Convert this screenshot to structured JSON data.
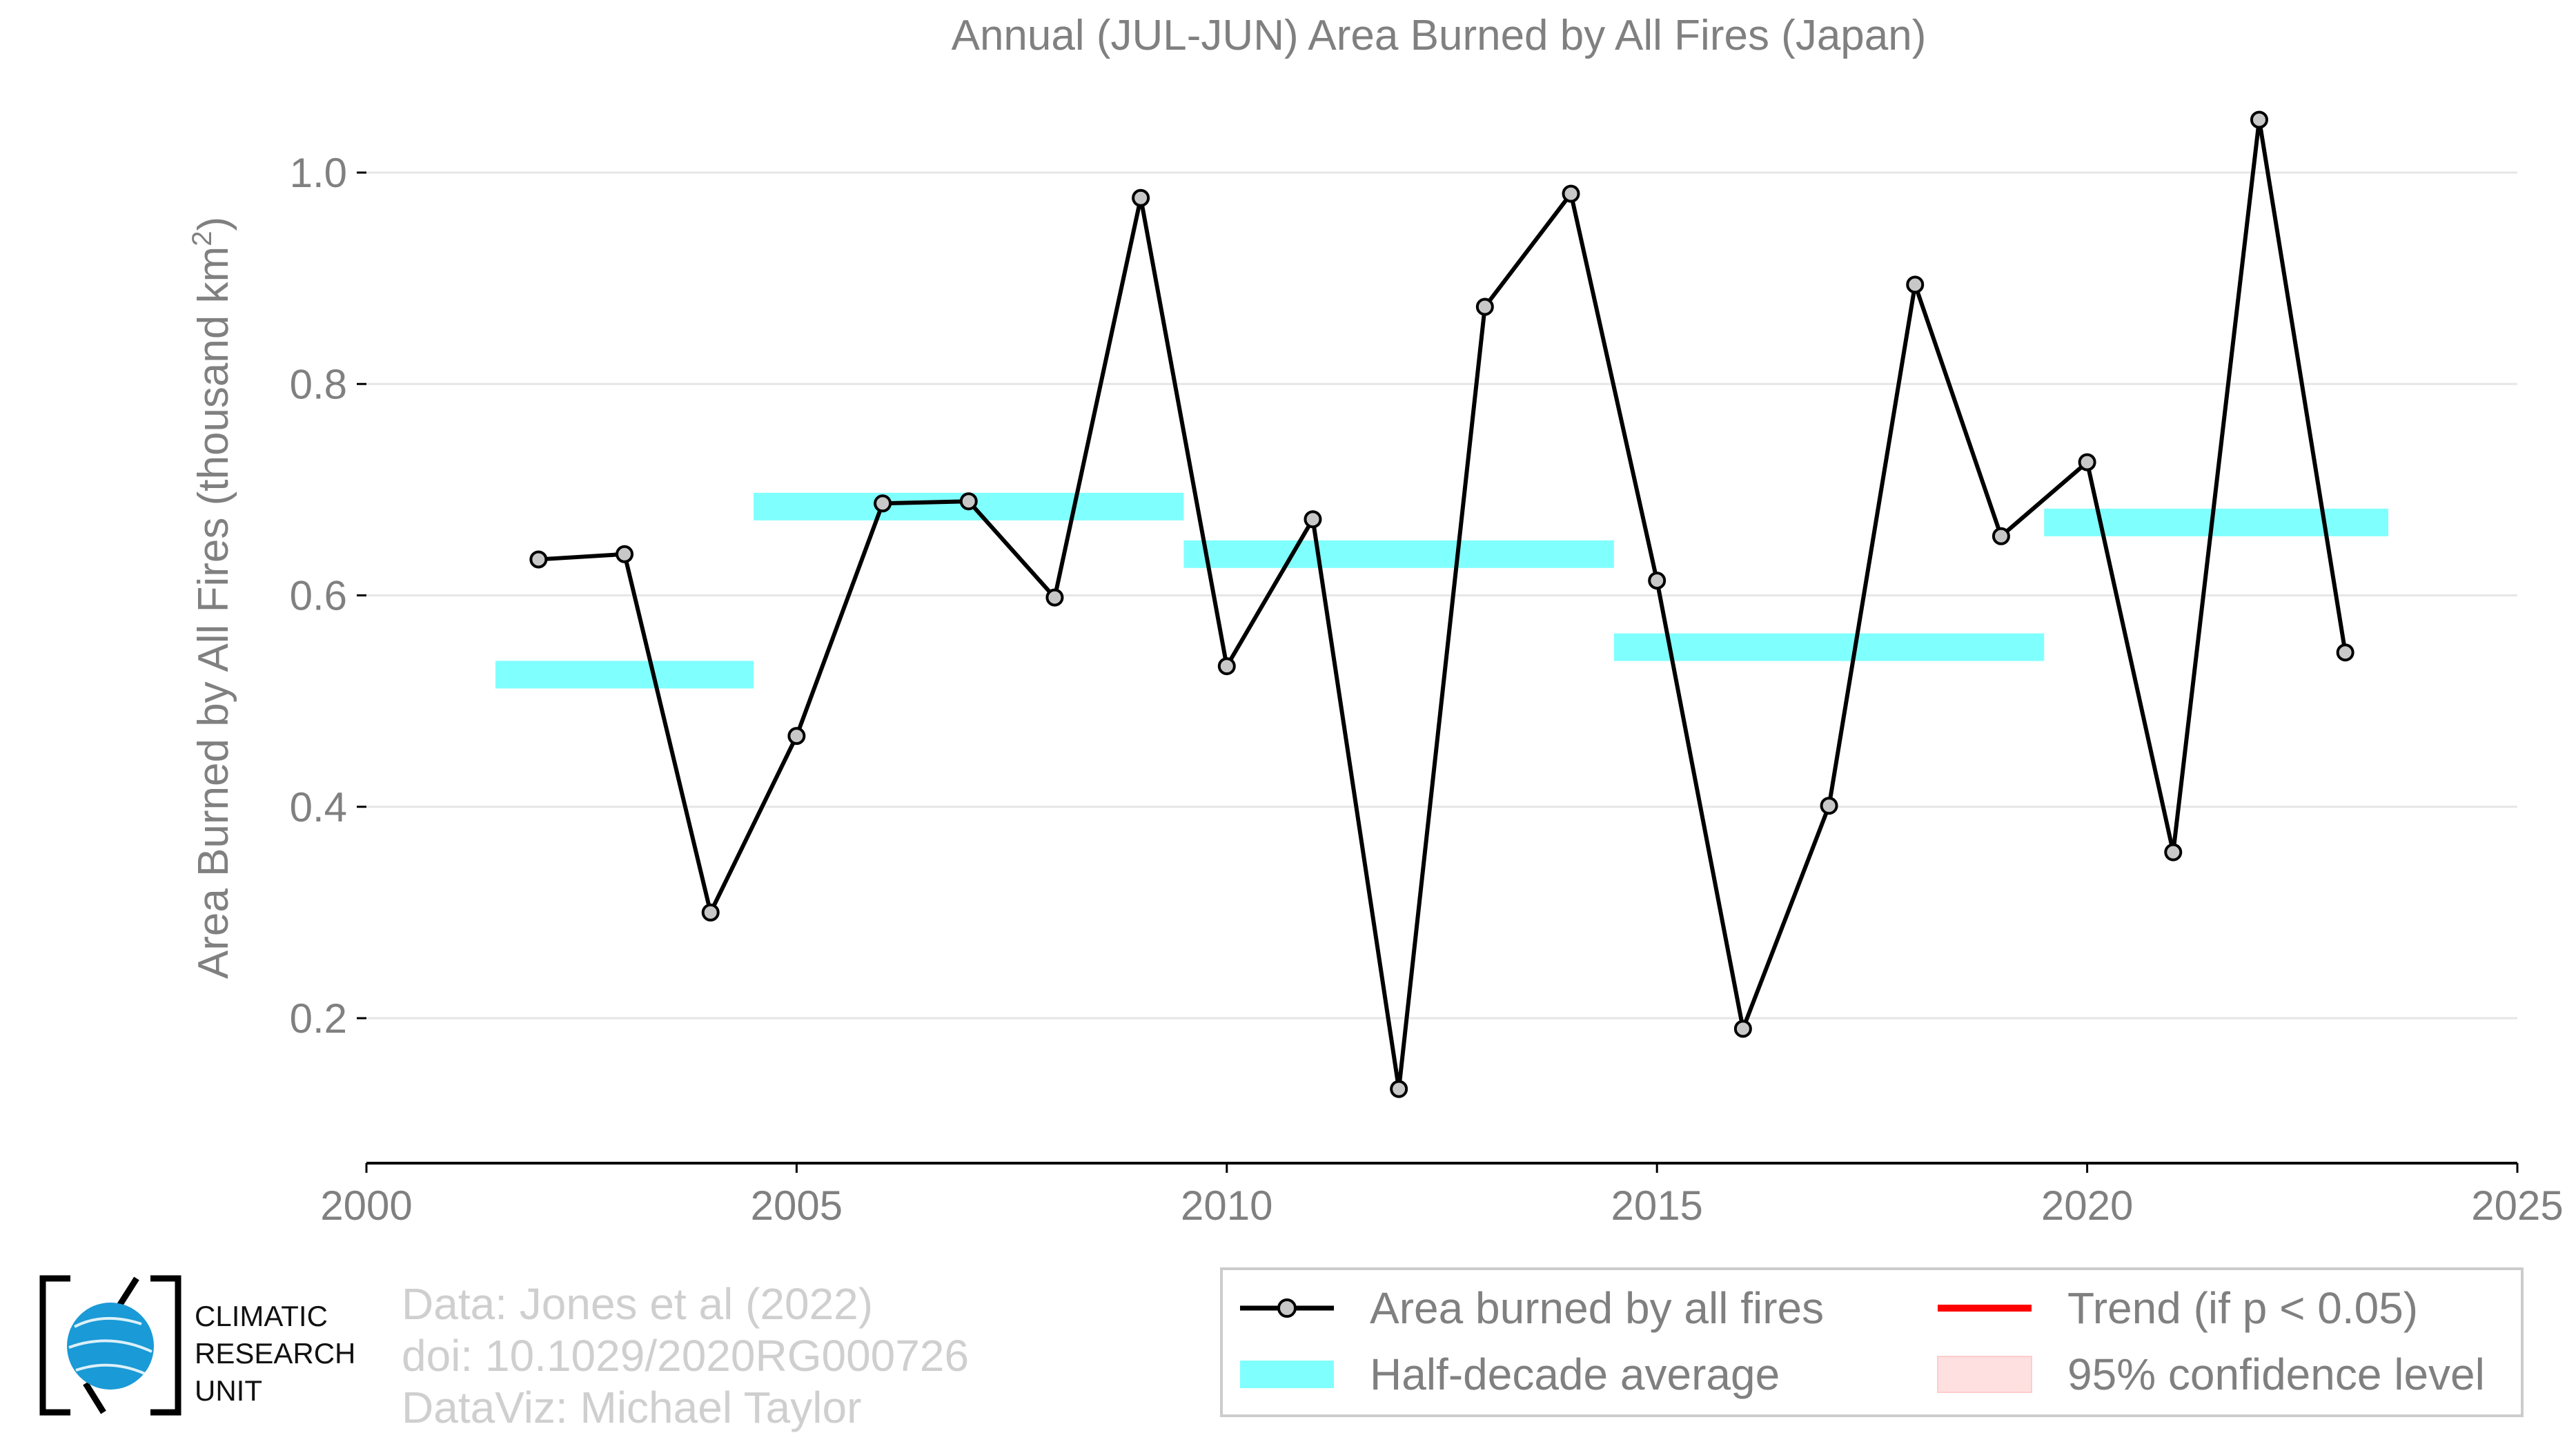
{
  "chart_data": {
    "type": "line",
    "title": "Annual (JUL-JUN) Area Burned by All Fires (Japan)",
    "ylabel": "Area Burned by All Fires (thousand km",
    "ylabel_superscript": "2",
    "ylabel_close": ")",
    "xlim": [
      2000,
      2025
    ],
    "ylim": [
      0.06,
      1.06
    ],
    "x_ticks": [
      2000,
      2005,
      2010,
      2015,
      2020,
      2025
    ],
    "y_ticks": [
      0.2,
      0.4,
      0.6,
      0.8,
      1.0
    ],
    "x_tick_labels": [
      "2000",
      "2005",
      "2010",
      "2015",
      "2020",
      "2025"
    ],
    "y_tick_labels": [
      "0.2",
      "0.4",
      "0.6",
      "0.8",
      "1.0"
    ],
    "grid": "horizontal",
    "series": [
      {
        "name": "Area burned by all fires",
        "color": "#000000",
        "x": [
          2002,
          2003,
          2004,
          2005,
          2006,
          2007,
          2008,
          2009,
          2010,
          2011,
          2012,
          2013,
          2014,
          2015,
          2016,
          2017,
          2018,
          2019,
          2020,
          2021,
          2022,
          2023
        ],
        "y": [
          0.634,
          0.639,
          0.3,
          0.467,
          0.687,
          0.689,
          0.598,
          0.976,
          0.533,
          0.672,
          0.133,
          0.873,
          0.98,
          0.614,
          0.19,
          0.401,
          0.894,
          0.656,
          0.726,
          0.357,
          1.05,
          0.546
        ]
      }
    ],
    "half_decade_average": {
      "name": "Half-decade average",
      "color": "#80ffff",
      "segments": [
        {
          "x": [
            2001.5,
            2004.5
          ],
          "y": 0.525
        },
        {
          "x": [
            2004.5,
            2009.5
          ],
          "y": 0.684
        },
        {
          "x": [
            2009.5,
            2014.5
          ],
          "y": 0.639
        },
        {
          "x": [
            2014.5,
            2019.5
          ],
          "y": 0.551
        },
        {
          "x": [
            2019.5,
            2023.5
          ],
          "y": 0.669
        }
      ]
    },
    "legend": {
      "placement": "bottom-right",
      "entries": [
        {
          "label": "Area burned by all fires",
          "kind": "line-marker",
          "color": "#000000"
        },
        {
          "label": "Trend (if p < 0.05)",
          "kind": "line",
          "color": "#ff0000"
        },
        {
          "label": "Half-decade average",
          "kind": "band",
          "color": "#80ffff"
        },
        {
          "label": "95% confidence level",
          "kind": "patch",
          "color": "#ffe0e0"
        }
      ]
    }
  },
  "credits": {
    "line1": "Data: Jones et al (2022)",
    "line2": "doi: 10.1029/2020RG000726",
    "line3": "DataViz: Michael Taylor"
  },
  "logo": {
    "line1": "CLIMATIC",
    "line2": "RESEARCH",
    "line3": "UNIT",
    "globe_color": "#1a9ad6"
  }
}
